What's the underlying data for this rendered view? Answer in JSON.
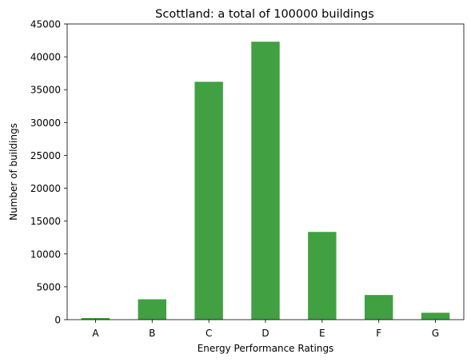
{
  "chart_data": {
    "type": "bar",
    "title": "Scottland: a total of 100000 buildings",
    "xlabel": "Energy Performance Ratings",
    "ylabel": "Number of buildings",
    "categories": [
      "A",
      "B",
      "C",
      "D",
      "E",
      "F",
      "G"
    ],
    "values": [
      250,
      3100,
      36200,
      42300,
      13350,
      3750,
      1050
    ],
    "ylim": [
      0,
      45000
    ],
    "yticks": [
      0,
      5000,
      10000,
      15000,
      20000,
      25000,
      30000,
      35000,
      40000,
      45000
    ],
    "ytick_labels": [
      "0",
      "5000",
      "10000",
      "15000",
      "20000",
      "25000",
      "30000",
      "35000",
      "40000",
      "45000"
    ],
    "grid": false,
    "legend": "none",
    "bar_color": "#41a041"
  }
}
